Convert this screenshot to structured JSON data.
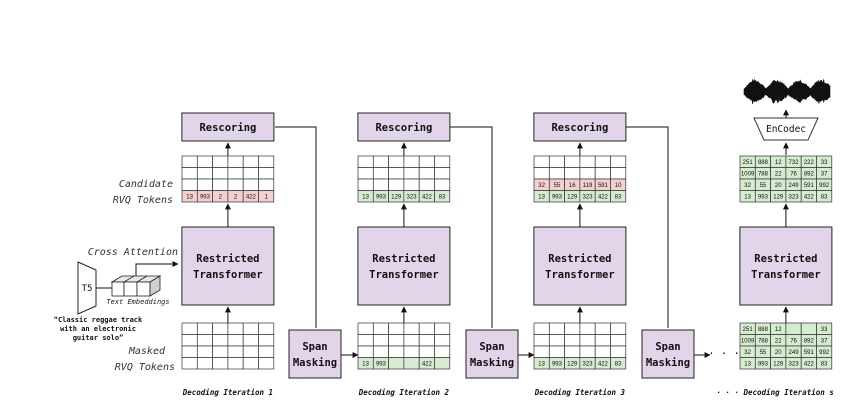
{
  "colors": {
    "box": "#e2d5ea",
    "green": "#d5ecd0",
    "red": "#f3d0d0",
    "neutral": "#ffffff"
  },
  "labels": {
    "rescoring": "Rescoring",
    "transformer_line1": "Restricted",
    "transformer_line2": "Transformer",
    "span_line1": "Span",
    "span_line2": "Masking",
    "encodec": "EnCodec",
    "t5": "T5",
    "text_embeddings": "Text Embeddings",
    "cross_attention": "Cross Attention",
    "candidate_line1": "Candidate",
    "candidate_line2": "RVQ Tokens",
    "masked_line1": "Masked",
    "masked_line2": "RVQ Tokens",
    "dots": "· · ·",
    "prompt_lines": [
      "“Classic reggae track",
      "with an electronic",
      "guitar solo”"
    ]
  },
  "iterations": [
    {
      "label": "Decoding Iteration 1",
      "candidate_rows": [
        {
          "color": "neutral",
          "cells": [
            "",
            "",
            "",
            "",
            "",
            ""
          ]
        },
        {
          "color": "neutral",
          "cells": [
            "",
            "",
            "",
            "",
            "",
            ""
          ]
        },
        {
          "color": "neutral",
          "cells": [
            "",
            "",
            "",
            "",
            "",
            ""
          ]
        },
        {
          "color": "red",
          "cells": [
            "13",
            "993",
            "2",
            "2",
            "422",
            "1"
          ]
        }
      ],
      "masked_rows": [
        {
          "color": "neutral",
          "cells": [
            "",
            "",
            "",
            "",
            "",
            ""
          ]
        },
        {
          "color": "neutral",
          "cells": [
            "",
            "",
            "",
            "",
            "",
            ""
          ]
        },
        {
          "color": "neutral",
          "cells": [
            "",
            "",
            "",
            "",
            "",
            ""
          ]
        },
        {
          "color": "neutral",
          "cells": [
            "",
            "",
            "",
            "",
            "",
            ""
          ]
        }
      ]
    },
    {
      "label": "Decoding Iteration 2",
      "candidate_rows": [
        {
          "color": "neutral",
          "cells": [
            "",
            "",
            "",
            "",
            "",
            ""
          ]
        },
        {
          "color": "neutral",
          "cells": [
            "",
            "",
            "",
            "",
            "",
            ""
          ]
        },
        {
          "color": "neutral",
          "cells": [
            "",
            "",
            "",
            "",
            "",
            ""
          ]
        },
        {
          "color": "green",
          "cells": [
            "13",
            "993",
            "129",
            "323",
            "422",
            "83"
          ]
        }
      ],
      "masked_rows": [
        {
          "color": "neutral",
          "cells": [
            "",
            "",
            "",
            "",
            "",
            ""
          ]
        },
        {
          "color": "neutral",
          "cells": [
            "",
            "",
            "",
            "",
            "",
            ""
          ]
        },
        {
          "color": "neutral",
          "cells": [
            "",
            "",
            "",
            "",
            "",
            ""
          ]
        },
        {
          "color": "green",
          "cells": [
            "13",
            "993",
            "",
            "",
            "422",
            ""
          ]
        }
      ]
    },
    {
      "label": "Decoding Iteration 3",
      "candidate_rows": [
        {
          "color": "neutral",
          "cells": [
            "",
            "",
            "",
            "",
            "",
            ""
          ]
        },
        {
          "color": "neutral",
          "cells": [
            "",
            "",
            "",
            "",
            "",
            ""
          ]
        },
        {
          "color": "red",
          "cells": [
            "32",
            "55",
            "16",
            "119",
            "591",
            "10"
          ]
        },
        {
          "color": "green",
          "cells": [
            "13",
            "993",
            "129",
            "323",
            "422",
            "83"
          ]
        }
      ],
      "masked_rows": [
        {
          "color": "neutral",
          "cells": [
            "",
            "",
            "",
            "",
            "",
            ""
          ]
        },
        {
          "color": "neutral",
          "cells": [
            "",
            "",
            "",
            "",
            "",
            ""
          ]
        },
        {
          "color": "neutral",
          "cells": [
            "",
            "",
            "",
            "",
            "",
            ""
          ]
        },
        {
          "color": "green",
          "cells": [
            "13",
            "993",
            "129",
            "323",
            "422",
            "83"
          ]
        }
      ]
    },
    {
      "label": "Decoding Iteration s",
      "candidate_rows": [
        {
          "color": "green",
          "cells": [
            "251",
            "888",
            "12",
            "732",
            "222",
            "33"
          ]
        },
        {
          "color": "green",
          "cells": [
            "1009",
            "788",
            "22",
            "76",
            "892",
            "37"
          ]
        },
        {
          "color": "green",
          "cells": [
            "32",
            "55",
            "20",
            "249",
            "591",
            "992"
          ]
        },
        {
          "color": "green",
          "cells": [
            "13",
            "993",
            "129",
            "323",
            "422",
            "83"
          ]
        }
      ],
      "masked_rows": [
        {
          "color": "green",
          "cells": [
            "251",
            "888",
            "12",
            "",
            "",
            "33"
          ]
        },
        {
          "color": "green",
          "cells": [
            "1009",
            "788",
            "22",
            "76",
            "892",
            "37"
          ]
        },
        {
          "color": "green",
          "cells": [
            "32",
            "55",
            "20",
            "249",
            "591",
            "992"
          ]
        },
        {
          "color": "green",
          "cells": [
            "13",
            "993",
            "129",
            "323",
            "422",
            "83"
          ]
        }
      ]
    }
  ]
}
